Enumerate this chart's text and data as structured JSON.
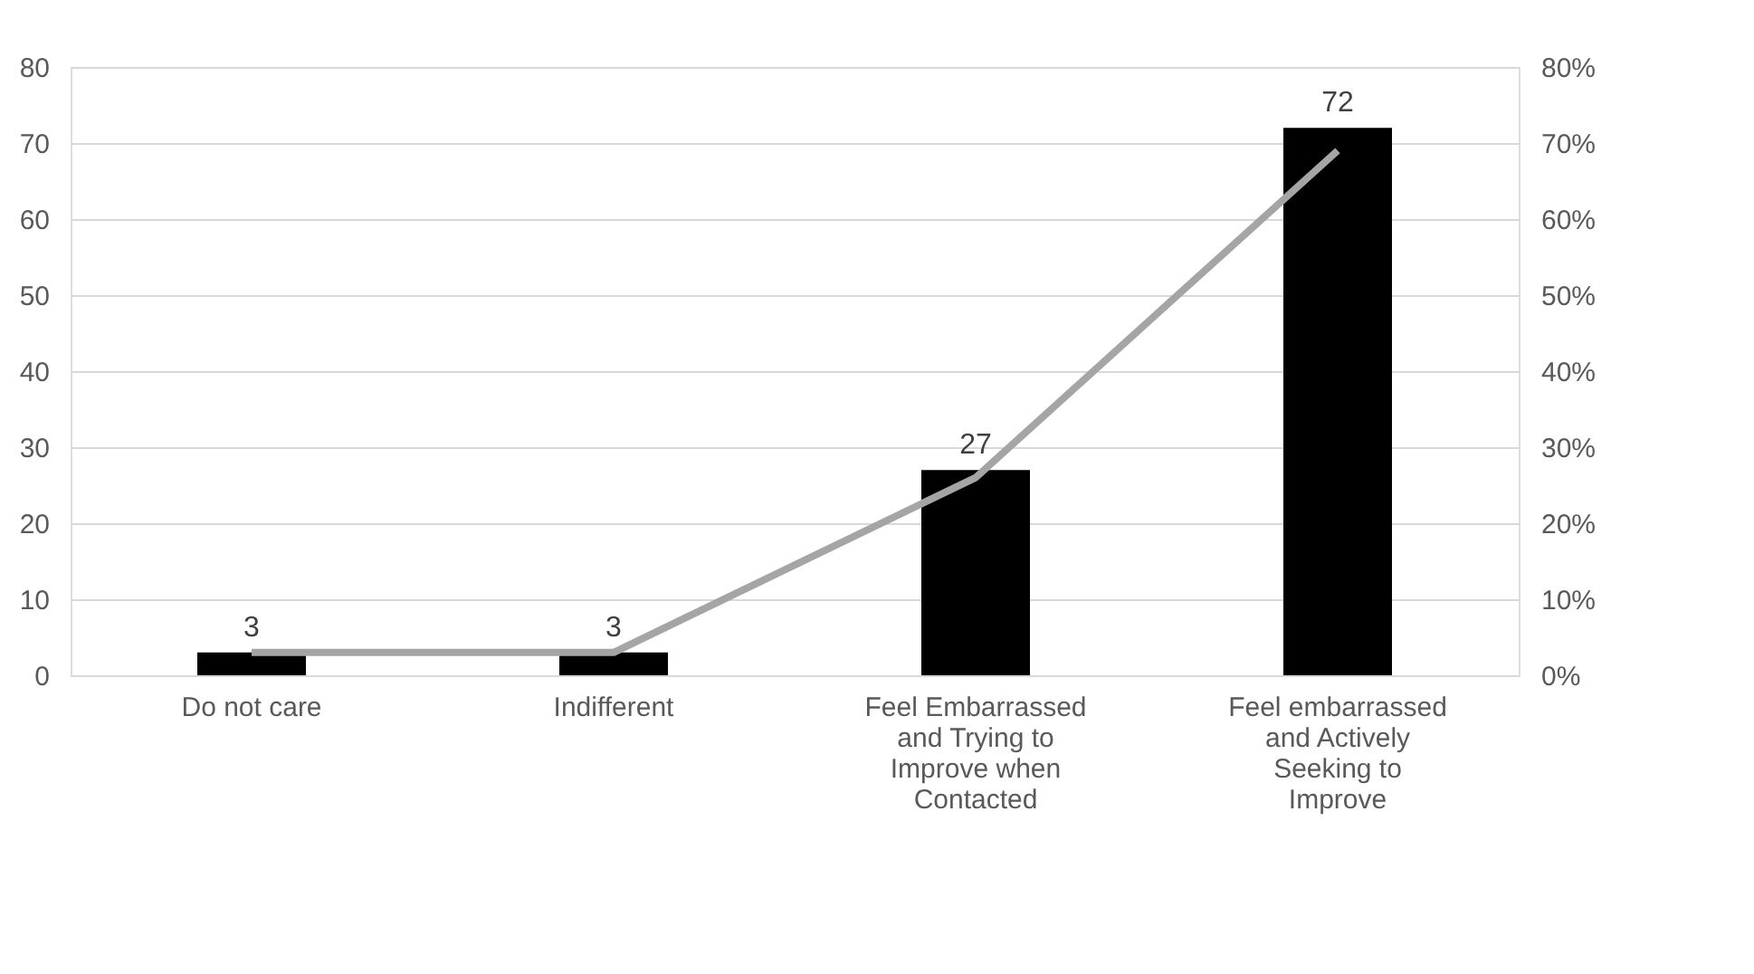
{
  "chart_data": {
    "type": "bar",
    "categories": [
      "Do not care",
      "Indifferent",
      "Feel Embarrassed and Trying to Improve when Contacted",
      "Feel embarrassed and Actively Seeking to Improve"
    ],
    "series": [
      {
        "color": "#000000",
        "values": [
          3,
          3,
          27,
          72
        ],
        "value_labels": [
          "3",
          "3",
          "27",
          "72"
        ]
      },
      {
        "type": "line",
        "axis": "y2",
        "color": "#a5a5a5",
        "values": [
          3,
          3,
          26,
          69
        ]
      }
    ],
    "ylim": [
      0,
      80
    ],
    "yticks": [
      0,
      10,
      20,
      30,
      40,
      50,
      60,
      70,
      80
    ],
    "y2lim": [
      0,
      80
    ],
    "y2ticks": [
      {
        "value": 0,
        "label": "0%"
      },
      {
        "value": 10,
        "label": "10%"
      },
      {
        "value": 20,
        "label": "20%"
      },
      {
        "value": 30,
        "label": "30%"
      },
      {
        "value": 40,
        "label": "40%"
      },
      {
        "value": 50,
        "label": "50%"
      },
      {
        "value": 60,
        "label": "60%"
      },
      {
        "value": 70,
        "label": "70%"
      },
      {
        "value": 80,
        "label": "80%"
      }
    ],
    "grid": "y",
    "legend": false,
    "marker": "none",
    "line_style": "solid"
  }
}
